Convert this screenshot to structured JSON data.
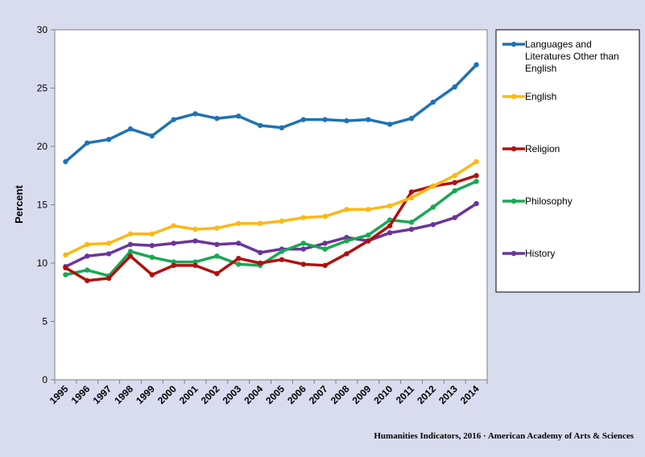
{
  "chart_data": {
    "type": "line",
    "ylabel": "Percent",
    "ylim": [
      0,
      30
    ],
    "yticks": [
      "0",
      "5",
      "10",
      "15",
      "20",
      "25",
      "30"
    ],
    "categories": [
      "1995",
      "1996",
      "1997",
      "1998",
      "1999",
      "2000",
      "2001",
      "2002",
      "2003",
      "2004",
      "2005",
      "2006",
      "2007",
      "2008",
      "2009",
      "2010",
      "2011",
      "2012",
      "2013",
      "2014"
    ],
    "grid": false,
    "legend_position": "right",
    "series": [
      {
        "name": "Languages and Literatures Other than English",
        "legend_lines": [
          "Languages and",
          "Literatures Other than",
          "English"
        ],
        "color": "#1f72b3",
        "values": [
          18.7,
          20.3,
          20.6,
          21.5,
          20.9,
          22.3,
          22.8,
          22.4,
          22.6,
          21.8,
          21.6,
          22.3,
          22.3,
          22.2,
          22.3,
          21.9,
          22.4,
          23.8,
          25.1,
          27.0
        ]
      },
      {
        "name": "English",
        "legend_lines": [
          "English"
        ],
        "color": "#fcb813",
        "values": [
          10.7,
          11.6,
          11.7,
          12.5,
          12.5,
          13.2,
          12.9,
          13.0,
          13.4,
          13.4,
          13.6,
          13.9,
          14.0,
          14.6,
          14.6,
          14.9,
          15.6,
          16.6,
          17.5,
          18.7
        ]
      },
      {
        "name": "Religion",
        "legend_lines": [
          "Religion"
        ],
        "color": "#b01010",
        "values": [
          9.6,
          8.5,
          8.7,
          10.6,
          9.0,
          9.8,
          9.8,
          9.1,
          10.4,
          10.0,
          10.3,
          9.9,
          9.8,
          10.8,
          11.9,
          13.2,
          16.1,
          16.6,
          16.9,
          17.5
        ]
      },
      {
        "name": "Philosophy",
        "legend_lines": [
          "Philosophy"
        ],
        "color": "#1aa754",
        "values": [
          9.0,
          9.4,
          8.9,
          11.0,
          10.5,
          10.1,
          10.1,
          10.6,
          9.9,
          9.8,
          11.0,
          11.7,
          11.2,
          11.9,
          12.4,
          13.7,
          13.5,
          14.8,
          16.2,
          17.0
        ]
      },
      {
        "name": "History",
        "legend_lines": [
          "History"
        ],
        "color": "#6a3599",
        "values": [
          9.7,
          10.6,
          10.8,
          11.6,
          11.5,
          11.7,
          11.9,
          11.6,
          11.7,
          10.9,
          11.2,
          11.2,
          11.7,
          12.2,
          11.9,
          12.6,
          12.9,
          13.3,
          13.9,
          15.1
        ]
      }
    ]
  },
  "credit": "Humanities  Indicators, 2016  ·  American  Academy  of  Arts  &  Sciences"
}
